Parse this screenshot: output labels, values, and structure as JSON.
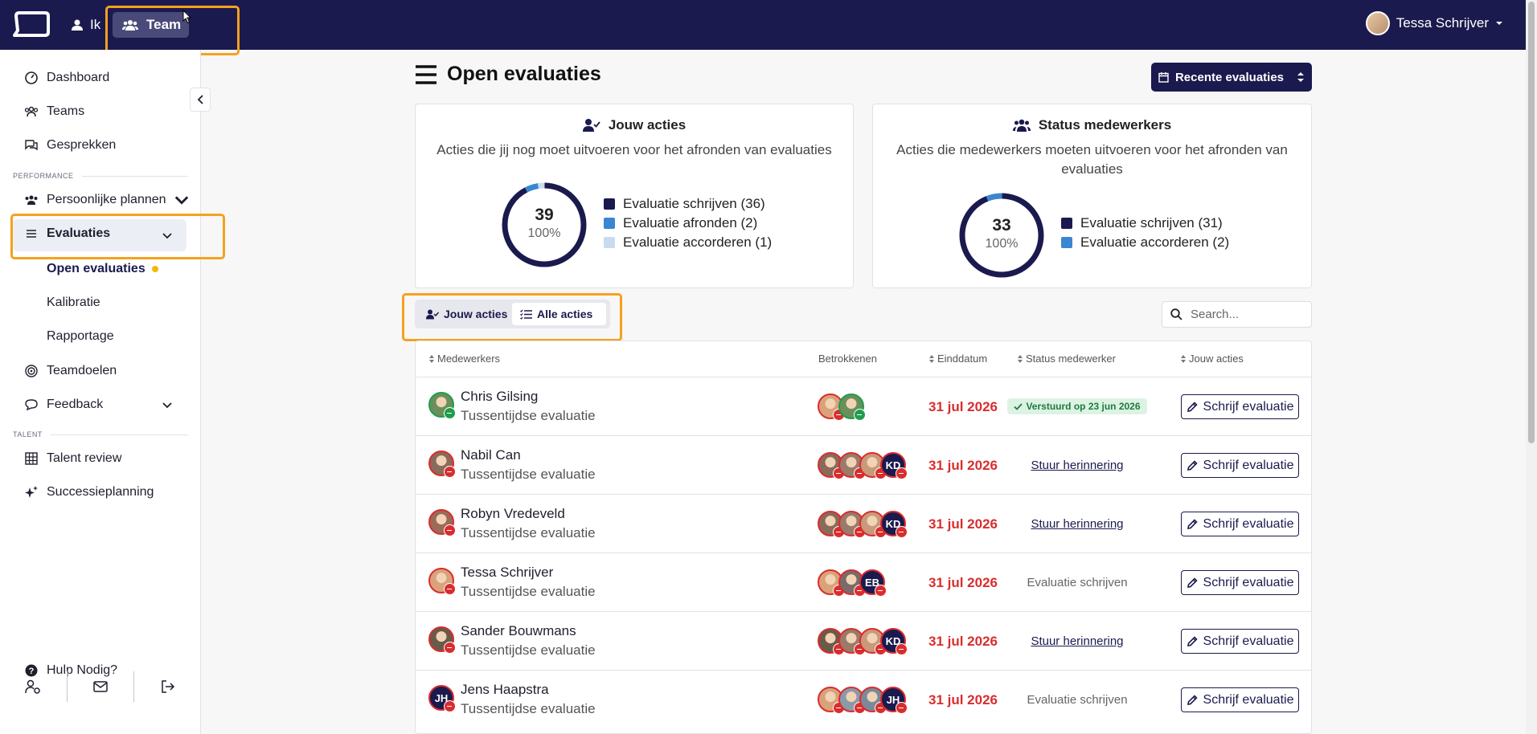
{
  "topbar": {
    "nav": [
      {
        "label": "Ik",
        "icon": "user-icon"
      },
      {
        "label": "Team",
        "icon": "users-icon",
        "active": true
      }
    ],
    "user_name": "Tessa Schrijver"
  },
  "sidebar": {
    "items": [
      {
        "label": "Dashboard",
        "icon": "dashboard-icon"
      },
      {
        "label": "Teams",
        "icon": "teams-icon"
      },
      {
        "label": "Gesprekken",
        "icon": "chat-icon"
      }
    ],
    "section_performance": "PERFORMANCE",
    "persoonlijke_plannen": "Persoonlijke plannen",
    "evaluaties": "Evaluaties",
    "sub_items": [
      "Open evaluaties",
      "Kalibratie",
      "Rapportage"
    ],
    "teamdoelen": "Teamdoelen",
    "feedback": "Feedback",
    "section_talent": "TALENT",
    "talent_review": "Talent review",
    "successieplanning": "Successieplanning",
    "help": "Hulp Nodig?"
  },
  "main": {
    "title": "Open evaluaties",
    "recent_button": "Recente evaluaties",
    "card_left": {
      "title": "Jouw acties",
      "subtitle": "Acties die jij nog moet uitvoeren voor het afronden van evaluaties",
      "total": "39",
      "percent": "100%",
      "legend": [
        "Evaluatie schrijven (36)",
        "Evaluatie afronden (2)",
        "Evaluatie accorderen (1)"
      ],
      "colors": [
        "#1b1a4e",
        "#3b86d0",
        "#c9dcef"
      ],
      "values": [
        36,
        2,
        1
      ]
    },
    "card_right": {
      "title": "Status medewerkers",
      "subtitle": "Acties die medewerkers moeten uitvoeren voor het afronden van evaluaties",
      "total": "33",
      "percent": "100%",
      "legend": [
        "Evaluatie schrijven (31)",
        "Evaluatie accorderen (2)"
      ],
      "colors": [
        "#1b1a4e",
        "#3b86d0"
      ],
      "values": [
        31,
        2
      ]
    },
    "toggle": {
      "jouw": "Jouw acties",
      "alle": "Alle acties"
    },
    "search_placeholder": "Search...",
    "table": {
      "headers": [
        "Medewerkers",
        "Betrokkenen",
        "Einddatum",
        "Status medewerker",
        "Jouw acties"
      ],
      "rows": [
        {
          "name": "Chris Gilsing",
          "type": "Tussentijdse evaluatie",
          "date": "31 jul 2026",
          "status": "Verstuurd op 23 jun 2026",
          "status_kind": "pill",
          "action": "Schrijf evaluatie"
        },
        {
          "name": "Nabil Can",
          "type": "Tussentijdse evaluatie",
          "date": "31 jul 2026",
          "status": "Stuur herinnering",
          "status_kind": "link",
          "action": "Schrijf evaluatie"
        },
        {
          "name": "Robyn Vredeveld",
          "type": "Tussentijdse evaluatie",
          "date": "31 jul 2026",
          "status": "Stuur herinnering",
          "status_kind": "link",
          "action": "Schrijf evaluatie"
        },
        {
          "name": "Tessa Schrijver",
          "type": "Tussentijdse evaluatie",
          "date": "31 jul 2026",
          "status": "Evaluatie schrijven",
          "status_kind": "plain",
          "action": "Schrijf evaluatie"
        },
        {
          "name": "Sander Bouwmans",
          "type": "Tussentijdse evaluatie",
          "date": "31 jul 2026",
          "status": "Stuur herinnering",
          "status_kind": "link",
          "action": "Schrijf evaluatie"
        },
        {
          "name": "Jens Haapstra",
          "type": "Tussentijdse evaluatie",
          "date": "31 jul 2026",
          "status": "Evaluatie schrijven",
          "status_kind": "plain",
          "action": "Schrijf evaluatie"
        }
      ],
      "involved": [
        [
          {
            "kind": "photo",
            "c": "#d9a27a"
          },
          {
            "kind": "photo",
            "c": "#6a8f5a",
            "ok": true
          }
        ],
        [
          {
            "kind": "photo",
            "c": "#8a6a5a"
          },
          {
            "kind": "photo",
            "c": "#9a7a6a"
          },
          {
            "kind": "photo",
            "c": "#c99a7a"
          },
          {
            "kind": "initials",
            "t": "KD"
          }
        ],
        [
          {
            "kind": "photo",
            "c": "#8a6a5a"
          },
          {
            "kind": "photo",
            "c": "#9a7a6a"
          },
          {
            "kind": "photo",
            "c": "#c99a7a"
          },
          {
            "kind": "initials",
            "t": "KD"
          }
        ],
        [
          {
            "kind": "photo",
            "c": "#d9a27a"
          },
          {
            "kind": "photo",
            "c": "#7a6a6a"
          },
          {
            "kind": "initials",
            "t": "EB"
          }
        ],
        [
          {
            "kind": "photo",
            "c": "#6a5a4a"
          },
          {
            "kind": "photo",
            "c": "#9a7a6a"
          },
          {
            "kind": "photo",
            "c": "#c99a7a"
          },
          {
            "kind": "initials",
            "t": "KD"
          }
        ],
        [
          {
            "kind": "photo",
            "c": "#d9a27a"
          },
          {
            "kind": "photo",
            "c": "#8a9aa8"
          },
          {
            "kind": "photo",
            "c": "#7a8a9a"
          },
          {
            "kind": "initials",
            "t": "JH"
          }
        ]
      ],
      "avatars": [
        {
          "kind": "photo",
          "c": "#6a8f5a",
          "ok": true
        },
        {
          "kind": "photo",
          "c": "#8a6a5a"
        },
        {
          "kind": "photo",
          "c": "#9a6a5a"
        },
        {
          "kind": "photo",
          "c": "#d9a27a"
        },
        {
          "kind": "photo",
          "c": "#6a5a4a"
        },
        {
          "kind": "initials",
          "t": "JH"
        }
      ]
    }
  }
}
